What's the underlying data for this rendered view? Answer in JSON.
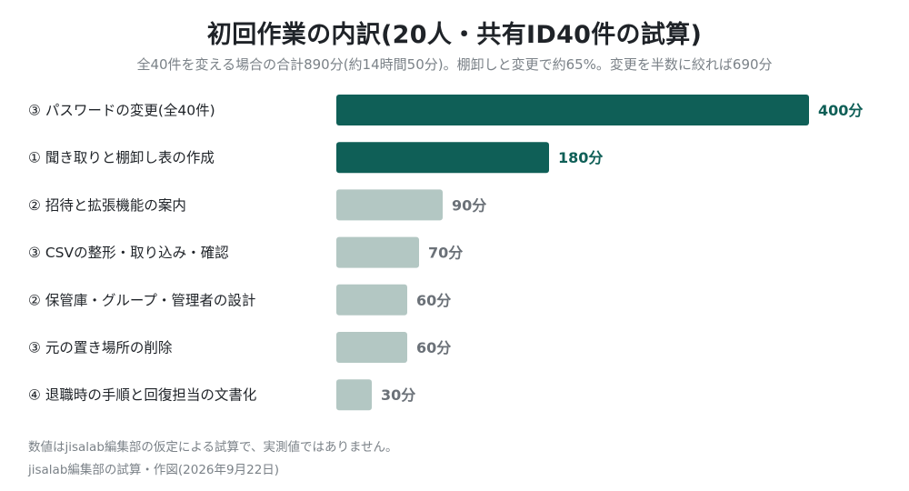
{
  "title": "初回作業の内訳(20人・共有ID40件の試算)",
  "subtitle": "全40件を変える場合の合計890分(約14時間50分)。棚卸しと変更で約65%。変更を半数に絞れば690分",
  "chart_data": {
    "type": "bar",
    "orientation": "horizontal",
    "unit": "分",
    "categories": [
      "③ パスワードの変更(全40件)",
      "① 聞き取りと棚卸し表の作成",
      "② 招待と拡張機能の案内",
      "③ CSVの整形・取り込み・確認",
      "② 保管庫・グループ・管理者の設計",
      "③ 元の置き場所の削除",
      "④ 退職時の手順と回復担当の文書化"
    ],
    "values": [
      400,
      180,
      90,
      70,
      60,
      60,
      30
    ],
    "value_labels": [
      "400分",
      "180分",
      "90分",
      "70分",
      "60分",
      "60分",
      "30分"
    ],
    "highlighted": [
      true,
      true,
      false,
      false,
      false,
      false,
      false
    ],
    "colors": {
      "highlight": "#0f5f57",
      "normal": "#b3c7c3",
      "normal_label": "#6b7178"
    },
    "xlim": [
      0,
      400
    ],
    "grid": false,
    "legend": "none"
  },
  "notes": {
    "line1": "数値はjisalab編集部の仮定による試算で、実測値ではありません。",
    "line2": "jisalab編集部の試算・作図(2026年9月22日)"
  }
}
